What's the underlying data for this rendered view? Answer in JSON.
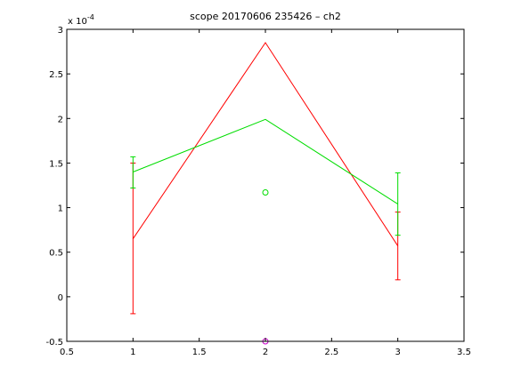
{
  "chart_data": {
    "type": "line",
    "title": "scope 20170606 235426 – ch2",
    "xlabel": "",
    "ylabel": "",
    "xlim": [
      0.5,
      3.5
    ],
    "ylim": [
      -5e-05,
      0.0003
    ],
    "x_ticks": [
      "0.5",
      "1",
      "1.5",
      "2",
      "2.5",
      "3",
      "3.5"
    ],
    "y_ticks": [
      "-0.5",
      "0",
      "0.5",
      "1",
      "1.5",
      "2",
      "2.5",
      "3"
    ],
    "x_tick_values": [
      0.5,
      1,
      1.5,
      2,
      2.5,
      3,
      3.5
    ],
    "y_tick_values": [
      -5e-05,
      0,
      5e-05,
      0.0001,
      0.00015,
      0.0002,
      0.00025,
      0.0003
    ],
    "y_exponent": {
      "base": "x 10",
      "power": "-4"
    },
    "grid": false,
    "series": [
      {
        "color": "#ff0000",
        "x": [
          1,
          2,
          3
        ],
        "y": [
          6.5e-05,
          0.000285,
          5.7e-05
        ],
        "error_low": [
          -1.9e-05,
          null,
          1.9e-05
        ],
        "error_high": [
          0.00015,
          null,
          9.5e-05
        ]
      },
      {
        "color": "#00dd00",
        "x": [
          1,
          2,
          3
        ],
        "y": [
          0.00014,
          0.000199,
          0.000104
        ],
        "error_low": [
          0.000122,
          null,
          6.9e-05
        ],
        "error_high": [
          0.000157,
          null,
          0.000139
        ]
      }
    ],
    "markers": [
      {
        "shape": "circle",
        "color": "#00dd00",
        "x": 2,
        "y": 0.000117
      },
      {
        "shape": "circle",
        "color": "#cc00cc",
        "x": 2,
        "y": -5e-05
      }
    ]
  }
}
